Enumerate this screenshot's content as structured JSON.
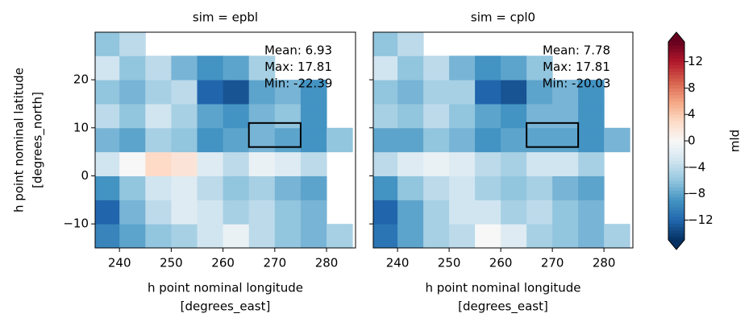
{
  "chart_data": [
    {
      "type": "heatmap",
      "title": "sim = epbl",
      "xlabel": [
        "h point nominal longitude",
        "[degrees_east]"
      ],
      "ylabel": [
        "h point nominal latitude",
        "[degrees_north]"
      ],
      "annotation": [
        "Mean: 6.93",
        "Max: 17.81",
        "Min: -22.39"
      ],
      "x": [
        237.5,
        242.5,
        247.5,
        252.5,
        257.5,
        262.5,
        267.5,
        272.5,
        277.5,
        282.5
      ],
      "y": [
        -12.5,
        -7.5,
        -2.5,
        2.5,
        7.5,
        12.5,
        17.5,
        22.5,
        27.5
      ],
      "values": [
        [
          -10,
          -8,
          -6,
          -5,
          -3,
          -1,
          -4,
          -6,
          -7,
          -5
        ],
        [
          -12,
          -7,
          -4,
          -2,
          -3,
          -5,
          -4,
          -6,
          -7,
          null
        ],
        [
          -9,
          -6,
          -3,
          -2,
          -4,
          -6,
          -5,
          -7,
          -8,
          null
        ],
        [
          -3,
          0,
          3,
          2,
          -2,
          -4,
          -1,
          -2,
          -4,
          null
        ],
        [
          -7,
          -8,
          -5,
          -6,
          -9,
          -8,
          -7,
          -8,
          -9,
          -6
        ],
        [
          -4,
          -6,
          -3,
          -5,
          -8,
          -9,
          -7,
          -6,
          -9,
          null
        ],
        [
          -6,
          -7,
          -5,
          -4,
          -12,
          -13,
          -8,
          -7,
          -9,
          null
        ],
        [
          -3,
          -6,
          -4,
          -7,
          -9,
          -8,
          -5,
          null,
          null,
          null
        ],
        [
          -6,
          -4,
          null,
          null,
          null,
          null,
          null,
          null,
          null,
          null
        ]
      ],
      "box": {
        "x": [
          265,
          275
        ],
        "y": [
          6,
          11
        ]
      },
      "xlim": [
        235.3,
        285.6
      ],
      "ylim": [
        -15,
        29.9
      ],
      "xticks": [
        240,
        250,
        260,
        270,
        280
      ],
      "yticks": [
        {
          "value": -10,
          "label": "−10"
        },
        0,
        10,
        20
      ]
    },
    {
      "type": "heatmap",
      "title": "sim = cpl0",
      "xlabel": [
        "h point nominal longitude",
        "[degrees_east]"
      ],
      "annotation": [
        "Mean: 7.78",
        "Max: 17.81",
        "Min: -20.03"
      ],
      "x": [
        237.5,
        242.5,
        247.5,
        252.5,
        257.5,
        262.5,
        267.5,
        272.5,
        277.5,
        282.5
      ],
      "y": [
        -12.5,
        -7.5,
        -2.5,
        2.5,
        7.5,
        12.5,
        17.5,
        22.5,
        27.5
      ],
      "values": [
        [
          -11,
          -8,
          -5,
          -4,
          0,
          -2,
          -5,
          -6,
          -7,
          -5
        ],
        [
          -12,
          -8,
          -5,
          -3,
          -3,
          -5,
          -4,
          -6,
          -7,
          null
        ],
        [
          -9,
          -6,
          -4,
          -3,
          -5,
          -6,
          -5,
          -7,
          -8,
          null
        ],
        [
          -4,
          -2,
          -1,
          -2,
          -4,
          -5,
          -3,
          -3,
          -5,
          null
        ],
        [
          -8,
          -8,
          -6,
          -7,
          -9,
          -8,
          -8,
          -8,
          -9,
          -7
        ],
        [
          -5,
          -6,
          -4,
          -6,
          -8,
          -9,
          -7,
          -7,
          -9,
          null
        ],
        [
          -6,
          -7,
          -5,
          -5,
          -12,
          -13,
          -8,
          -7,
          -9,
          null
        ],
        [
          -3,
          -6,
          -4,
          -7,
          -9,
          -8,
          -6,
          null,
          null,
          null
        ],
        [
          -6,
          -4,
          null,
          null,
          null,
          null,
          null,
          null,
          null,
          null
        ]
      ],
      "box": {
        "x": [
          265,
          275
        ],
        "y": [
          6,
          11
        ]
      },
      "xlim": [
        235.3,
        285.6
      ],
      "ylim": [
        -15,
        29.9
      ],
      "xticks": [
        240,
        250,
        260,
        270,
        280
      ],
      "yticks": [
        -10,
        0,
        10,
        20
      ]
    }
  ],
  "colorbar": {
    "label": "mld",
    "colormap": "RdBu_r",
    "clim": [
      -15,
      15
    ],
    "ticks": [
      {
        "value": -12,
        "label": "−12"
      },
      {
        "value": -8,
        "label": "−8"
      },
      {
        "value": -4,
        "label": "−4"
      },
      0,
      4,
      8,
      12
    ]
  }
}
